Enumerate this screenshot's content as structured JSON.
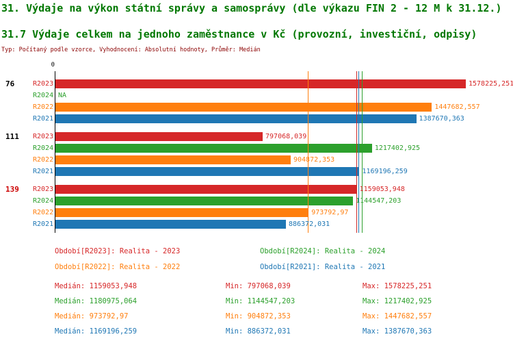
{
  "header": {
    "title": "31. Výdaje na výkon státní správy a samosprávy (dle výkazu FIN 2 - 12 M k 31.12.)",
    "subtitle": "31.7 Výdaje celkem na jednoho zaměstnance v Kč (provozní, investiční, odpisy)",
    "meta": "Typ: Počítaný podle vzorce, Vyhodnocení: Absolutní hodnoty, Průměr: Medián"
  },
  "colors": {
    "R2023": "#d62728",
    "R2024": "#2ca02c",
    "R2022": "#ff7f0e",
    "R2021": "#1f77b4",
    "title_green": "#007700",
    "meta_red": "#8b0000",
    "highlight_red": "#cc0000",
    "axis_black": "#000000"
  },
  "chart_data": {
    "type": "bar",
    "orientation": "horizontal",
    "x_axis": {
      "origin_label": "0",
      "min": 0,
      "max_value_shown": 1578225.251
    },
    "series_order": [
      "R2023",
      "R2024",
      "R2022",
      "R2021"
    ],
    "groups": [
      {
        "label": "76",
        "highlight": false,
        "bars": [
          {
            "series": "R2023",
            "value": 1578225.251,
            "label": "1578225,251"
          },
          {
            "series": "R2024",
            "value": null,
            "label": "NA"
          },
          {
            "series": "R2022",
            "value": 1447682.557,
            "label": "1447682,557"
          },
          {
            "series": "R2021",
            "value": 1387670.363,
            "label": "1387670,363"
          }
        ]
      },
      {
        "label": "111",
        "highlight": false,
        "bars": [
          {
            "series": "R2023",
            "value": 797068.039,
            "label": "797068,039"
          },
          {
            "series": "R2024",
            "value": 1217402.925,
            "label": "1217402,925"
          },
          {
            "series": "R2022",
            "value": 904872.353,
            "label": "904872,353"
          },
          {
            "series": "R2021",
            "value": 1169196.259,
            "label": "1169196,259"
          }
        ]
      },
      {
        "label": "139",
        "highlight": true,
        "bars": [
          {
            "series": "R2023",
            "value": 1159053.948,
            "label": "1159053,948"
          },
          {
            "series": "R2024",
            "value": 1144547.203,
            "label": "1144547,203"
          },
          {
            "series": "R2022",
            "value": 973792.97,
            "label": "973792,97"
          },
          {
            "series": "R2021",
            "value": 886372.031,
            "label": "886372,031"
          }
        ]
      }
    ],
    "median_lines": [
      {
        "series": "R2023",
        "value": 1159053.948
      },
      {
        "series": "R2024",
        "value": 1180975.064
      },
      {
        "series": "R2022",
        "value": 973792.97
      },
      {
        "series": "R2021",
        "value": 1169196.259
      }
    ],
    "legend": [
      {
        "series": "R2023",
        "label": "Období[R2023]: Realita - 2023"
      },
      {
        "series": "R2024",
        "label": "Období[R2024]: Realita - 2024"
      },
      {
        "series": "R2022",
        "label": "Období[R2022]: Realita - 2022"
      },
      {
        "series": "R2021",
        "label": "Období[R2021]: Realita - 2021"
      }
    ],
    "stats": [
      {
        "series": "R2023",
        "median": "Medián: 1159053,948",
        "min": "Min: 797068,039",
        "max": "Max: 1578225,251"
      },
      {
        "series": "R2024",
        "median": "Medián: 1180975,064",
        "min": "Min: 1144547,203",
        "max": "Max: 1217402,925"
      },
      {
        "series": "R2022",
        "median": "Medián: 973792,97",
        "min": "Min: 904872,353",
        "max": "Max: 1447682,557"
      },
      {
        "series": "R2021",
        "median": "Medián: 1169196,259",
        "min": "Min: 886372,031",
        "max": "Max: 1387670,363"
      }
    ]
  }
}
